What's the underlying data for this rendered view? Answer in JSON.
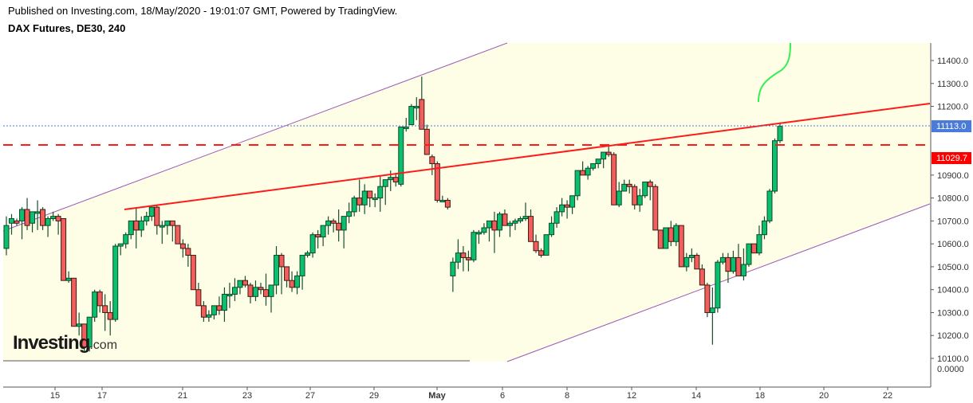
{
  "header": {
    "published": "Published on Investing.com, 18/May/2020 - 19:01:07 GMT, Powered by TradingView.",
    "title": "DAX Futures, DE30, 240"
  },
  "logo": {
    "main": "Investing",
    "suffix": ".com"
  },
  "colors": {
    "up": "#0bbf6f",
    "down": "#f25e5b",
    "border": "#3d1a14",
    "wick": "#1a4d2e",
    "background_band": "#fefee6",
    "trend_red": "#ff1a1a",
    "channel_purple": "#9b59b6",
    "last_price_badge": "#4a7bd8",
    "level_badge": "#ff0000",
    "drawn_curve": "#33ee55"
  },
  "chart_data": {
    "type": "candlestick",
    "title": "DAX Futures, DE30, 240",
    "timeframe": "240",
    "xlabel": "",
    "ylabel": "",
    "ylim": [
      10100,
      11450
    ],
    "y_ticks": [
      "11400.0",
      "11300.0",
      "11200.0",
      "11113.0",
      "11029.7",
      "10900.0",
      "10800.0",
      "10700.0",
      "10600.0",
      "10500.0",
      "10400.0",
      "10300.0",
      "10200.0",
      "10100.0",
      "0.0000"
    ],
    "x_ticks": [
      "15",
      "17",
      "21",
      "23",
      "27",
      "29",
      "May",
      "6",
      "8",
      "12",
      "14",
      "18",
      "20",
      "22"
    ],
    "last_price": "11113.0",
    "horizontal_level": "11029.7",
    "grid": false,
    "annotations": [
      "Ascending purple channel (upper and lower trendlines)",
      "Red rising resistance trendline from ~10745 (Apr 17) to ~11210 (right edge)",
      "Red dashed horizontal line at 11029.7",
      "Blue dotted line at last price 11113.0",
      "Green hand-drawn upward curve near May 18-19"
    ],
    "ohlc": [
      [
        10580,
        10720,
        10550,
        10680
      ],
      [
        10690,
        10730,
        10640,
        10710
      ],
      [
        10700,
        10710,
        10680,
        10690
      ],
      [
        10700,
        10760,
        10620,
        10750
      ],
      [
        10750,
        10800,
        10660,
        10680
      ],
      [
        10690,
        10740,
        10650,
        10740
      ],
      [
        10740,
        10790,
        10660,
        10740
      ],
      [
        10750,
        10760,
        10660,
        10680
      ],
      [
        10680,
        10720,
        10630,
        10710
      ],
      [
        10710,
        10740,
        10700,
        10720
      ],
      [
        10720,
        10730,
        10640,
        10700
      ],
      [
        10710,
        10710,
        10450,
        10440
      ],
      [
        10440,
        10480,
        10430,
        10450
      ],
      [
        10450,
        10450,
        10250,
        10240
      ],
      [
        10240,
        10300,
        10200,
        10250
      ],
      [
        10250,
        10250,
        10130,
        10150
      ],
      [
        10150,
        10250,
        10130,
        10280
      ],
      [
        10280,
        10400,
        10260,
        10390
      ],
      [
        10390,
        10400,
        10300,
        10330
      ],
      [
        10330,
        10380,
        10220,
        10300
      ],
      [
        10300,
        10350,
        10200,
        10270
      ],
      [
        10270,
        10600,
        10260,
        10590
      ],
      [
        10590,
        10600,
        10550,
        10600
      ],
      [
        10600,
        10650,
        10580,
        10640
      ],
      [
        10640,
        10700,
        10620,
        10700
      ],
      [
        10700,
        10760,
        10580,
        10660
      ],
      [
        10660,
        10720,
        10630,
        10700
      ],
      [
        10700,
        10740,
        10680,
        10720
      ],
      [
        10720,
        10760,
        10700,
        10760
      ],
      [
        10760,
        10770,
        10640,
        10680
      ],
      [
        10680,
        10700,
        10600,
        10680
      ],
      [
        10680,
        10700,
        10640,
        10700
      ],
      [
        10700,
        10700,
        10610,
        10680
      ],
      [
        10680,
        10680,
        10630,
        10600
      ],
      [
        10600,
        10620,
        10540,
        10580
      ],
      [
        10580,
        10600,
        10500,
        10550
      ],
      [
        10550,
        10550,
        10440,
        10400
      ],
      [
        10400,
        10430,
        10360,
        10330
      ],
      [
        10330,
        10350,
        10260,
        10280
      ],
      [
        10280,
        10310,
        10260,
        10290
      ],
      [
        10290,
        10330,
        10270,
        10330
      ],
      [
        10330,
        10370,
        10290,
        10310
      ],
      [
        10310,
        10410,
        10260,
        10380
      ],
      [
        10380,
        10430,
        10320,
        10380
      ],
      [
        10380,
        10450,
        10350,
        10410
      ],
      [
        10410,
        10440,
        10380,
        10440
      ],
      [
        10440,
        10460,
        10410,
        10420
      ],
      [
        10420,
        10430,
        10340,
        10370
      ],
      [
        10370,
        10440,
        10350,
        10410
      ],
      [
        10410,
        10430,
        10380,
        10400
      ],
      [
        10400,
        10470,
        10330,
        10370
      ],
      [
        10370,
        10420,
        10300,
        10420
      ],
      [
        10420,
        10590,
        10380,
        10550
      ],
      [
        10550,
        10560,
        10380,
        10500
      ],
      [
        10500,
        10500,
        10410,
        10440
      ],
      [
        10440,
        10480,
        10390,
        10410
      ],
      [
        10410,
        10480,
        10380,
        10460
      ],
      [
        10460,
        10530,
        10400,
        10550
      ],
      [
        10550,
        10570,
        10540,
        10560
      ],
      [
        10560,
        10650,
        10540,
        10640
      ],
      [
        10640,
        10660,
        10580,
        10630
      ],
      [
        10630,
        10660,
        10590,
        10680
      ],
      [
        10680,
        10720,
        10640,
        10700
      ],
      [
        10700,
        10710,
        10650,
        10690
      ],
      [
        10690,
        10750,
        10610,
        10660
      ],
      [
        10660,
        10710,
        10580,
        10720
      ],
      [
        10720,
        10780,
        10690,
        10740
      ],
      [
        10740,
        10810,
        10720,
        10800
      ],
      [
        10800,
        10880,
        10740,
        10770
      ],
      [
        10770,
        10860,
        10730,
        10830
      ],
      [
        10830,
        10830,
        10760,
        10800
      ],
      [
        10800,
        10820,
        10760,
        10800
      ],
      [
        10800,
        10900,
        10740,
        10850
      ],
      [
        10850,
        10860,
        10770,
        10880
      ],
      [
        10880,
        10920,
        10830,
        10890
      ],
      [
        10890,
        10910,
        10850,
        10870
      ],
      [
        10860,
        11110,
        10850,
        11110
      ],
      [
        11110,
        11150,
        11090,
        11110
      ],
      [
        11120,
        11210,
        11120,
        11200
      ],
      [
        11200,
        11240,
        11140,
        11200
      ],
      [
        11230,
        11330,
        11130,
        11100
      ],
      [
        11100,
        11120,
        11060,
        10990
      ],
      [
        10980,
        10990,
        10900,
        10950
      ],
      [
        10950,
        10960,
        10780,
        10790
      ],
      [
        10790,
        10810,
        10790,
        10790
      ],
      [
        10790,
        10800,
        10750,
        10760
      ],
      [
        10460,
        10540,
        10390,
        10520
      ],
      [
        10520,
        10620,
        10490,
        10560
      ],
      [
        10560,
        10590,
        10480,
        10540
      ],
      [
        10540,
        10570,
        10480,
        10530
      ],
      [
        10530,
        10660,
        10520,
        10650
      ],
      [
        10650,
        10660,
        10600,
        10650
      ],
      [
        10650,
        10690,
        10640,
        10670
      ],
      [
        10670,
        10700,
        10610,
        10700
      ],
      [
        10700,
        10740,
        10560,
        10660
      ],
      [
        10660,
        10740,
        10630,
        10730
      ],
      [
        10730,
        10750,
        10680,
        10680
      ],
      [
        10680,
        10700,
        10630,
        10690
      ],
      [
        10690,
        10710,
        10660,
        10700
      ],
      [
        10700,
        10720,
        10690,
        10710
      ],
      [
        10710,
        10780,
        10700,
        10720
      ],
      [
        10720,
        10750,
        10640,
        10610
      ],
      [
        10610,
        10640,
        10560,
        10570
      ],
      [
        10570,
        10580,
        10540,
        10550
      ],
      [
        10550,
        10640,
        10560,
        10640
      ],
      [
        10640,
        10720,
        10630,
        10690
      ],
      [
        10690,
        10760,
        10670,
        10740
      ],
      [
        10740,
        10800,
        10720,
        10770
      ],
      [
        10770,
        10790,
        10710,
        10760
      ],
      [
        10760,
        10790,
        10730,
        10810
      ],
      [
        10810,
        10920,
        10790,
        10920
      ],
      [
        10920,
        10960,
        10900,
        10900
      ],
      [
        10900,
        10940,
        10880,
        10930
      ],
      [
        10930,
        10950,
        10920,
        10950
      ],
      [
        10950,
        10970,
        10930,
        10970
      ],
      [
        10970,
        10980,
        10930,
        11000
      ],
      [
        11000,
        11030,
        10980,
        10990
      ],
      [
        10990,
        11000,
        10780,
        10770
      ],
      [
        10770,
        10870,
        10760,
        10830
      ],
      [
        10830,
        10880,
        10830,
        10860
      ],
      [
        10860,
        10880,
        10820,
        10850
      ],
      [
        10850,
        10860,
        10750,
        10770
      ],
      [
        10770,
        10840,
        10740,
        10810
      ],
      [
        10810,
        10870,
        10800,
        10870
      ],
      [
        10870,
        10880,
        10790,
        10850
      ],
      [
        10850,
        10860,
        10660,
        10660
      ],
      [
        10660,
        10660,
        10580,
        10580
      ],
      [
        10580,
        10670,
        10580,
        10670
      ],
      [
        10670,
        10700,
        10590,
        10610
      ],
      [
        10610,
        10690,
        10590,
        10680
      ],
      [
        10680,
        10680,
        10500,
        10500
      ],
      [
        10500,
        10560,
        10480,
        10540
      ],
      [
        10540,
        10580,
        10520,
        10550
      ],
      [
        10550,
        10560,
        10500,
        10490
      ],
      [
        10490,
        10510,
        10420,
        10420
      ],
      [
        10420,
        10430,
        10280,
        10300
      ],
      [
        10300,
        10410,
        10160,
        10320
      ],
      [
        10320,
        10530,
        10300,
        10520
      ],
      [
        10520,
        10560,
        10510,
        10540
      ],
      [
        10540,
        10560,
        10430,
        10480
      ],
      [
        10480,
        10570,
        10470,
        10540
      ],
      [
        10540,
        10600,
        10460,
        10460
      ],
      [
        10460,
        10580,
        10440,
        10510
      ],
      [
        10510,
        10600,
        10500,
        10600
      ],
      [
        10600,
        10590,
        10560,
        10560
      ],
      [
        10560,
        10680,
        10550,
        10640
      ],
      [
        10640,
        10720,
        10620,
        10700
      ],
      [
        10700,
        10840,
        10690,
        10830
      ],
      [
        10830,
        11060,
        10820,
        11050
      ],
      [
        11050,
        11130,
        11040,
        11113
      ]
    ]
  }
}
